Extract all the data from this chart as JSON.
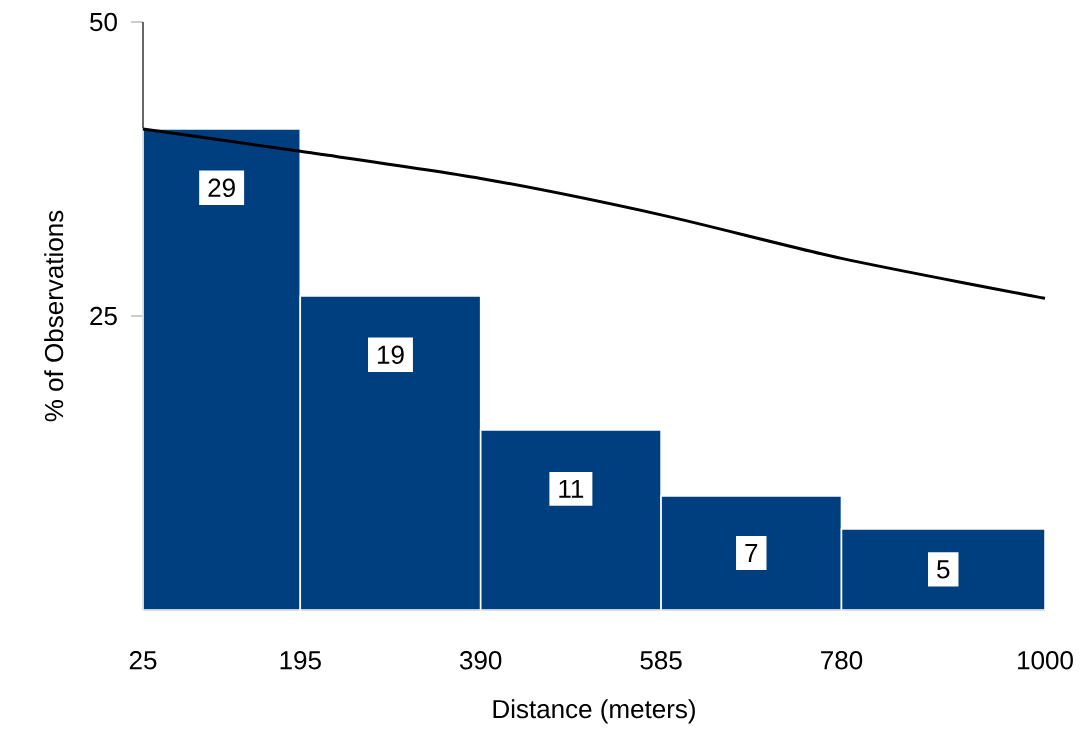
{
  "chart_data": {
    "type": "histogram",
    "xlabel": "Distance (meters)",
    "ylabel": "% of Observations",
    "bins": [
      25,
      195,
      390,
      585,
      780,
      1000
    ],
    "series": [
      {
        "color": "#003f7f",
        "values": [
          40.9,
          26.7,
          15.3,
          9.7,
          6.9
        ]
      },
      {
        "type": "line",
        "color": "#000000",
        "x": [
          25,
          195,
          390,
          585,
          780,
          1000
        ],
        "values": [
          40.9,
          39.0,
          36.7,
          33.6,
          29.9,
          26.5
        ]
      }
    ],
    "annotations": [
      "29",
      "19",
      "11",
      "7",
      "5"
    ],
    "xlim": [
      25,
      1000
    ],
    "ylim": [
      0,
      50
    ],
    "xticks": [
      25,
      195,
      390,
      585,
      780,
      1000
    ],
    "yticks": [
      25,
      50
    ]
  }
}
